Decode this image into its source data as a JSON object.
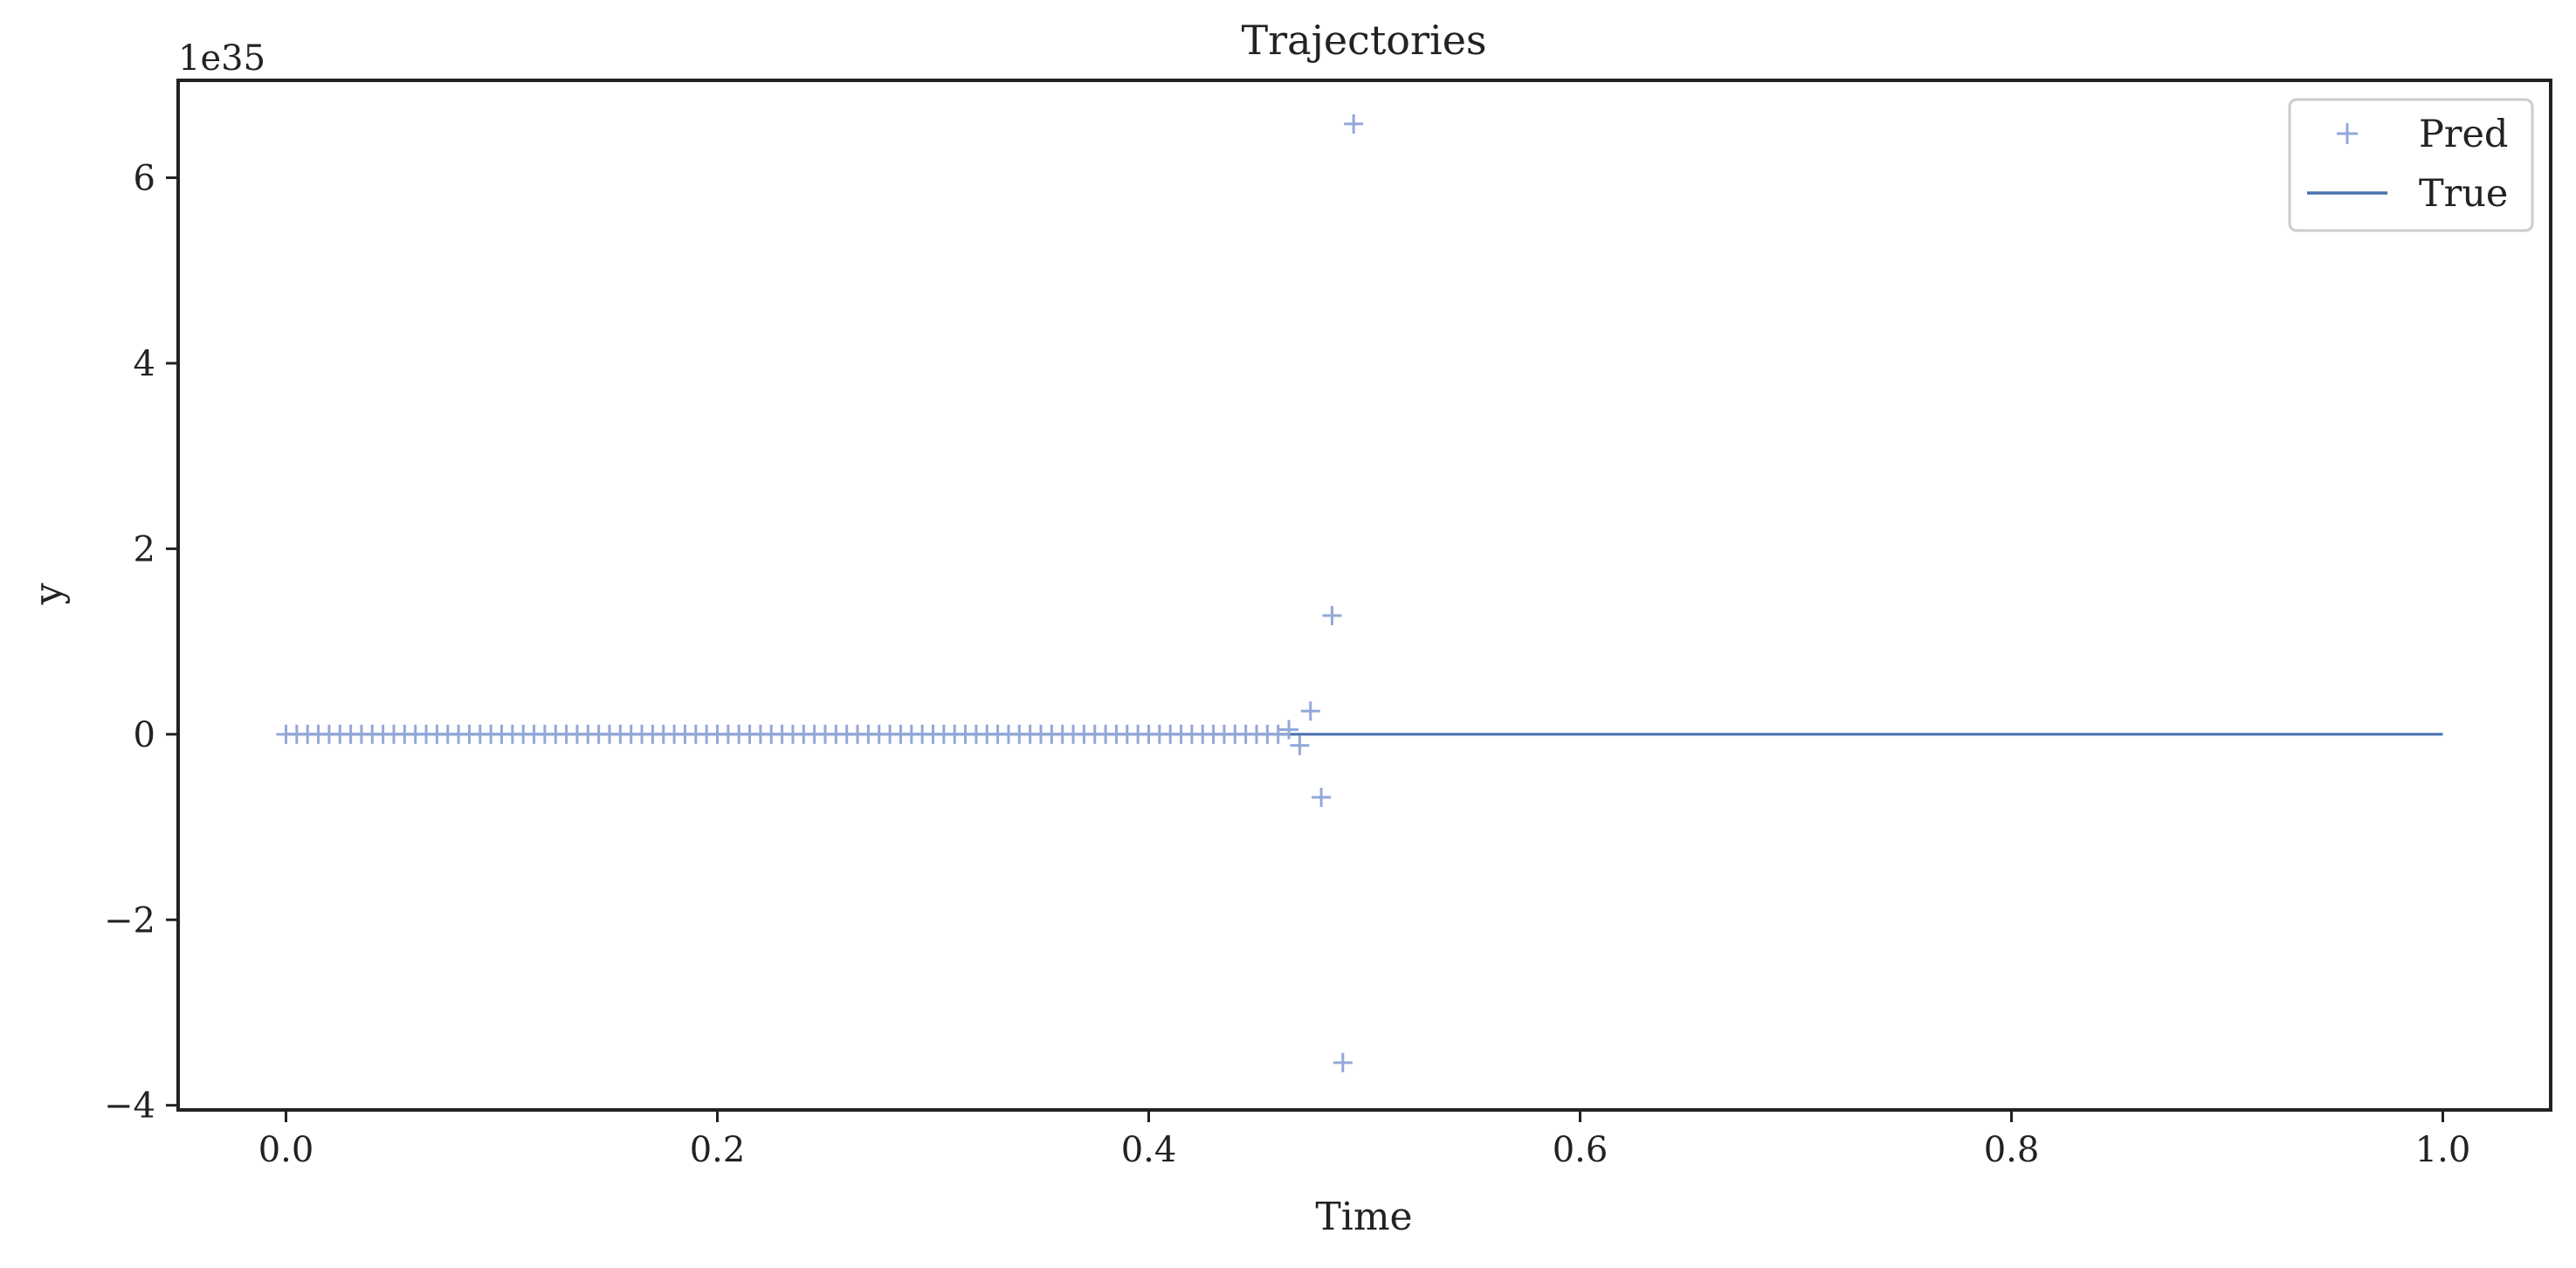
{
  "chart_data": {
    "type": "scatter",
    "title": "Trajectories",
    "xlabel": "Time",
    "ylabel": "y",
    "offset_text": "1e35",
    "y_scale_multiplier": 1e+35,
    "xlim": [
      -0.05,
      1.05
    ],
    "ylim": [
      -4.05,
      7.05
    ],
    "x_ticks": [
      0.0,
      0.2,
      0.4,
      0.6,
      0.8,
      1.0
    ],
    "x_tick_labels": [
      "0.0",
      "0.2",
      "0.4",
      "0.6",
      "0.8",
      "1.0"
    ],
    "y_ticks": [
      -4,
      -2,
      0,
      2,
      4,
      6
    ],
    "y_tick_labels": [
      "−4",
      "−2",
      "0",
      "2",
      "4",
      "6"
    ],
    "grid": false,
    "legend_position": "top-right",
    "colors": {
      "pred": "#92a8d8",
      "true": "#4c72b0",
      "axes": "#222222"
    },
    "series": [
      {
        "name": "Pred",
        "kind": "scatter",
        "marker": "plus",
        "x": [
          0.0,
          0.005,
          0.01,
          0.015,
          0.02,
          0.025,
          0.03,
          0.035,
          0.04,
          0.045,
          0.05,
          0.055,
          0.06,
          0.065,
          0.07,
          0.075,
          0.08,
          0.085,
          0.09,
          0.095,
          0.1,
          0.105,
          0.11,
          0.115,
          0.12,
          0.125,
          0.13,
          0.135,
          0.14,
          0.145,
          0.15,
          0.155,
          0.16,
          0.165,
          0.17,
          0.175,
          0.18,
          0.185,
          0.19,
          0.195,
          0.2,
          0.205,
          0.21,
          0.215,
          0.22,
          0.225,
          0.23,
          0.235,
          0.24,
          0.245,
          0.25,
          0.255,
          0.26,
          0.265,
          0.27,
          0.275,
          0.28,
          0.285,
          0.29,
          0.295,
          0.3,
          0.305,
          0.31,
          0.315,
          0.32,
          0.325,
          0.33,
          0.335,
          0.34,
          0.345,
          0.35,
          0.355,
          0.36,
          0.365,
          0.37,
          0.375,
          0.38,
          0.385,
          0.39,
          0.395,
          0.4,
          0.405,
          0.41,
          0.415,
          0.42,
          0.425,
          0.43,
          0.435,
          0.44,
          0.445,
          0.45,
          0.455,
          0.46,
          0.465,
          0.47,
          0.475,
          0.48,
          0.485,
          0.49,
          0.495
        ],
        "y": [
          0,
          0,
          0,
          0,
          0,
          0,
          0,
          0,
          0,
          0,
          0,
          0,
          0,
          0,
          0,
          0,
          0,
          0,
          0,
          0,
          0,
          0,
          0,
          0,
          0,
          0,
          0,
          0,
          0,
          0,
          0,
          0,
          0,
          0,
          0,
          0,
          0,
          0,
          0,
          0,
          0,
          0,
          0,
          0,
          0,
          0,
          0,
          0,
          0,
          0,
          0,
          0,
          0,
          0,
          0,
          0,
          0,
          0,
          0,
          0,
          0,
          0,
          0,
          0,
          0,
          0,
          0,
          0,
          0,
          0,
          0,
          0,
          0,
          0,
          0,
          0,
          0,
          0,
          0,
          0,
          0,
          0,
          0,
          0,
          0,
          0,
          0,
          0,
          0,
          0,
          0,
          0,
          0.0,
          0.05,
          -0.12,
          0.25,
          -0.68,
          1.28,
          -3.54,
          6.58
        ]
      },
      {
        "name": "True",
        "kind": "line",
        "x": [
          0.0,
          1.0
        ],
        "y": [
          0,
          0
        ]
      }
    ]
  }
}
